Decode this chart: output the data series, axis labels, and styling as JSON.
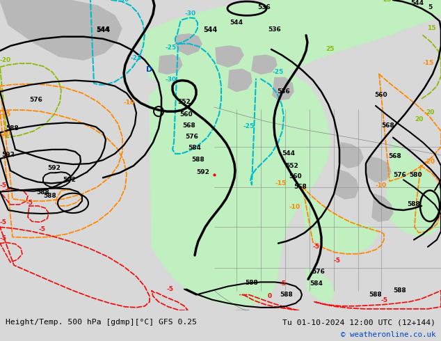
{
  "title_left": "Height/Temp. 500 hPa [gdmp][°C] GFS 0.25",
  "title_right": "Tu 01-10-2024 12:00 UTC (12+144)",
  "copyright": "© weatheronline.co.uk",
  "bg_color": "#d8d8d8",
  "green_fill": "#c8f0c8",
  "gray_land": "#c0c0c0",
  "figsize": [
    6.34,
    4.9
  ],
  "dpi": 100
}
